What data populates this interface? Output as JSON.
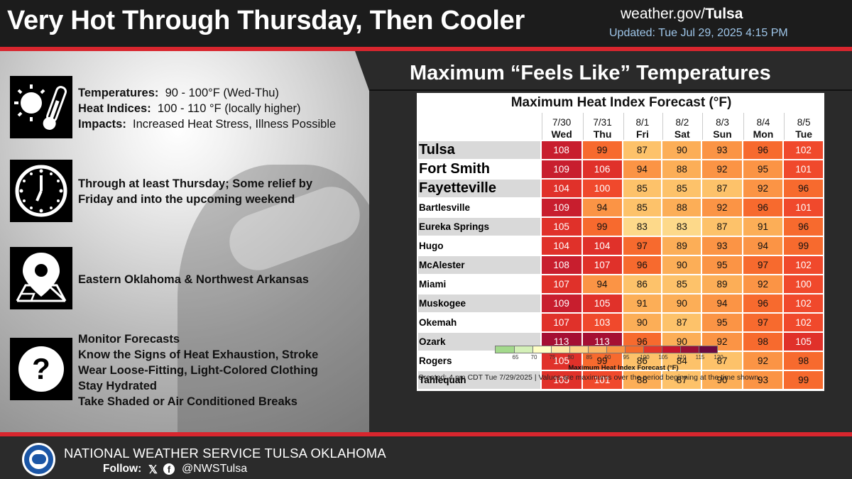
{
  "header": {
    "title": "Very Hot Through Thursday, Then Cooler",
    "site_prefix": "weather.gov/",
    "site_office": "Tulsa",
    "updated": "Updated: Tue Jul 29, 2025 4:15 PM"
  },
  "info": {
    "temps": {
      "temp_label": "Temperatures:",
      "temp_value": "90 - 100°F (Wed-Thu)",
      "hi_label": "Heat Indices:",
      "hi_value": "100 - 110 °F (locally higher)",
      "impacts_label": "Impacts:",
      "impacts_value": "Increased Heat Stress, Illness Possible"
    },
    "timing": "Through at least Thursday; Some relief by Friday and into the upcoming weekend",
    "location": "Eastern Oklahoma & Northwest Arkansas",
    "actions": [
      "Monitor Forecasts",
      "Know the Signs of Heat Exhaustion, Stroke",
      "Wear Loose-Fitting, Light-Colored Clothing",
      "Stay Hydrated",
      "Take Shaded or Air Conditioned Breaks"
    ],
    "icons": [
      "sun-thermometer-icon",
      "clock-icon",
      "map-pin-icon",
      "question-icon"
    ]
  },
  "panel_heading": "Maximum “Feels Like” Temperatures",
  "table": {
    "title": "Maximum Heat Index Forecast (°F)",
    "columns": [
      {
        "date": "7/30",
        "day": "Wed"
      },
      {
        "date": "7/31",
        "day": "Thu"
      },
      {
        "date": "8/1",
        "day": "Fri"
      },
      {
        "date": "8/2",
        "day": "Sat"
      },
      {
        "date": "8/3",
        "day": "Sun"
      },
      {
        "date": "8/4",
        "day": "Mon"
      },
      {
        "date": "8/5",
        "day": "Tue"
      }
    ],
    "rows": [
      {
        "city": "Tulsa",
        "big": true,
        "values": [
          108,
          99,
          87,
          90,
          93,
          96,
          102
        ]
      },
      {
        "city": "Fort Smith",
        "big": true,
        "values": [
          109,
          106,
          94,
          88,
          92,
          95,
          101
        ]
      },
      {
        "city": "Fayetteville",
        "big": true,
        "values": [
          104,
          100,
          85,
          85,
          87,
          92,
          96
        ]
      },
      {
        "city": "Bartlesville",
        "big": false,
        "values": [
          109,
          94,
          85,
          88,
          92,
          96,
          101
        ]
      },
      {
        "city": "Eureka Springs",
        "big": false,
        "values": [
          105,
          99,
          83,
          83,
          87,
          91,
          96
        ]
      },
      {
        "city": "Hugo",
        "big": false,
        "values": [
          104,
          104,
          97,
          89,
          93,
          94,
          99
        ]
      },
      {
        "city": "McAlester",
        "big": false,
        "values": [
          108,
          107,
          96,
          90,
          95,
          97,
          102
        ]
      },
      {
        "city": "Miami",
        "big": false,
        "values": [
          107,
          94,
          86,
          85,
          89,
          92,
          100
        ]
      },
      {
        "city": "Muskogee",
        "big": false,
        "values": [
          109,
          105,
          91,
          90,
          94,
          96,
          102
        ]
      },
      {
        "city": "Okemah",
        "big": false,
        "values": [
          107,
          103,
          90,
          87,
          95,
          97,
          102
        ]
      },
      {
        "city": "Ozark",
        "big": false,
        "values": [
          113,
          113,
          96,
          90,
          92,
          98,
          105
        ]
      },
      {
        "city": "Rogers",
        "big": false,
        "values": [
          105,
          99,
          86,
          84,
          87,
          92,
          98
        ]
      },
      {
        "city": "Tahlequah",
        "big": false,
        "values": [
          105,
          101,
          88,
          87,
          90,
          93,
          99
        ]
      }
    ],
    "legend": {
      "ticks": [
        "65",
        "70",
        "75",
        "80",
        "85",
        "90",
        "95",
        "100",
        "105",
        "110",
        "115",
        "120"
      ],
      "colors": [
        "#a3d98c",
        "#d4f0b8",
        "#ffffc6",
        "#fde9a6",
        "#fdd488",
        "#fbb765",
        "#f99644",
        "#f46b2b",
        "#e2342a",
        "#c4152e",
        "#9a0f36",
        "#6c0840"
      ],
      "title": "Maximum Heat Index Forecast (°F)"
    },
    "created": "Created: 4 pm CDT Tue 7/29/2025  |  Values are maximums over the period beginning at the time shown."
  },
  "footer": {
    "office": "NATIONAL WEATHER SERVICE TULSA OKLAHOMA",
    "follow_label": "Follow:",
    "x_glyph": "𝕏",
    "fb_glyph": "f",
    "handle": "@NWSTulsa"
  }
}
